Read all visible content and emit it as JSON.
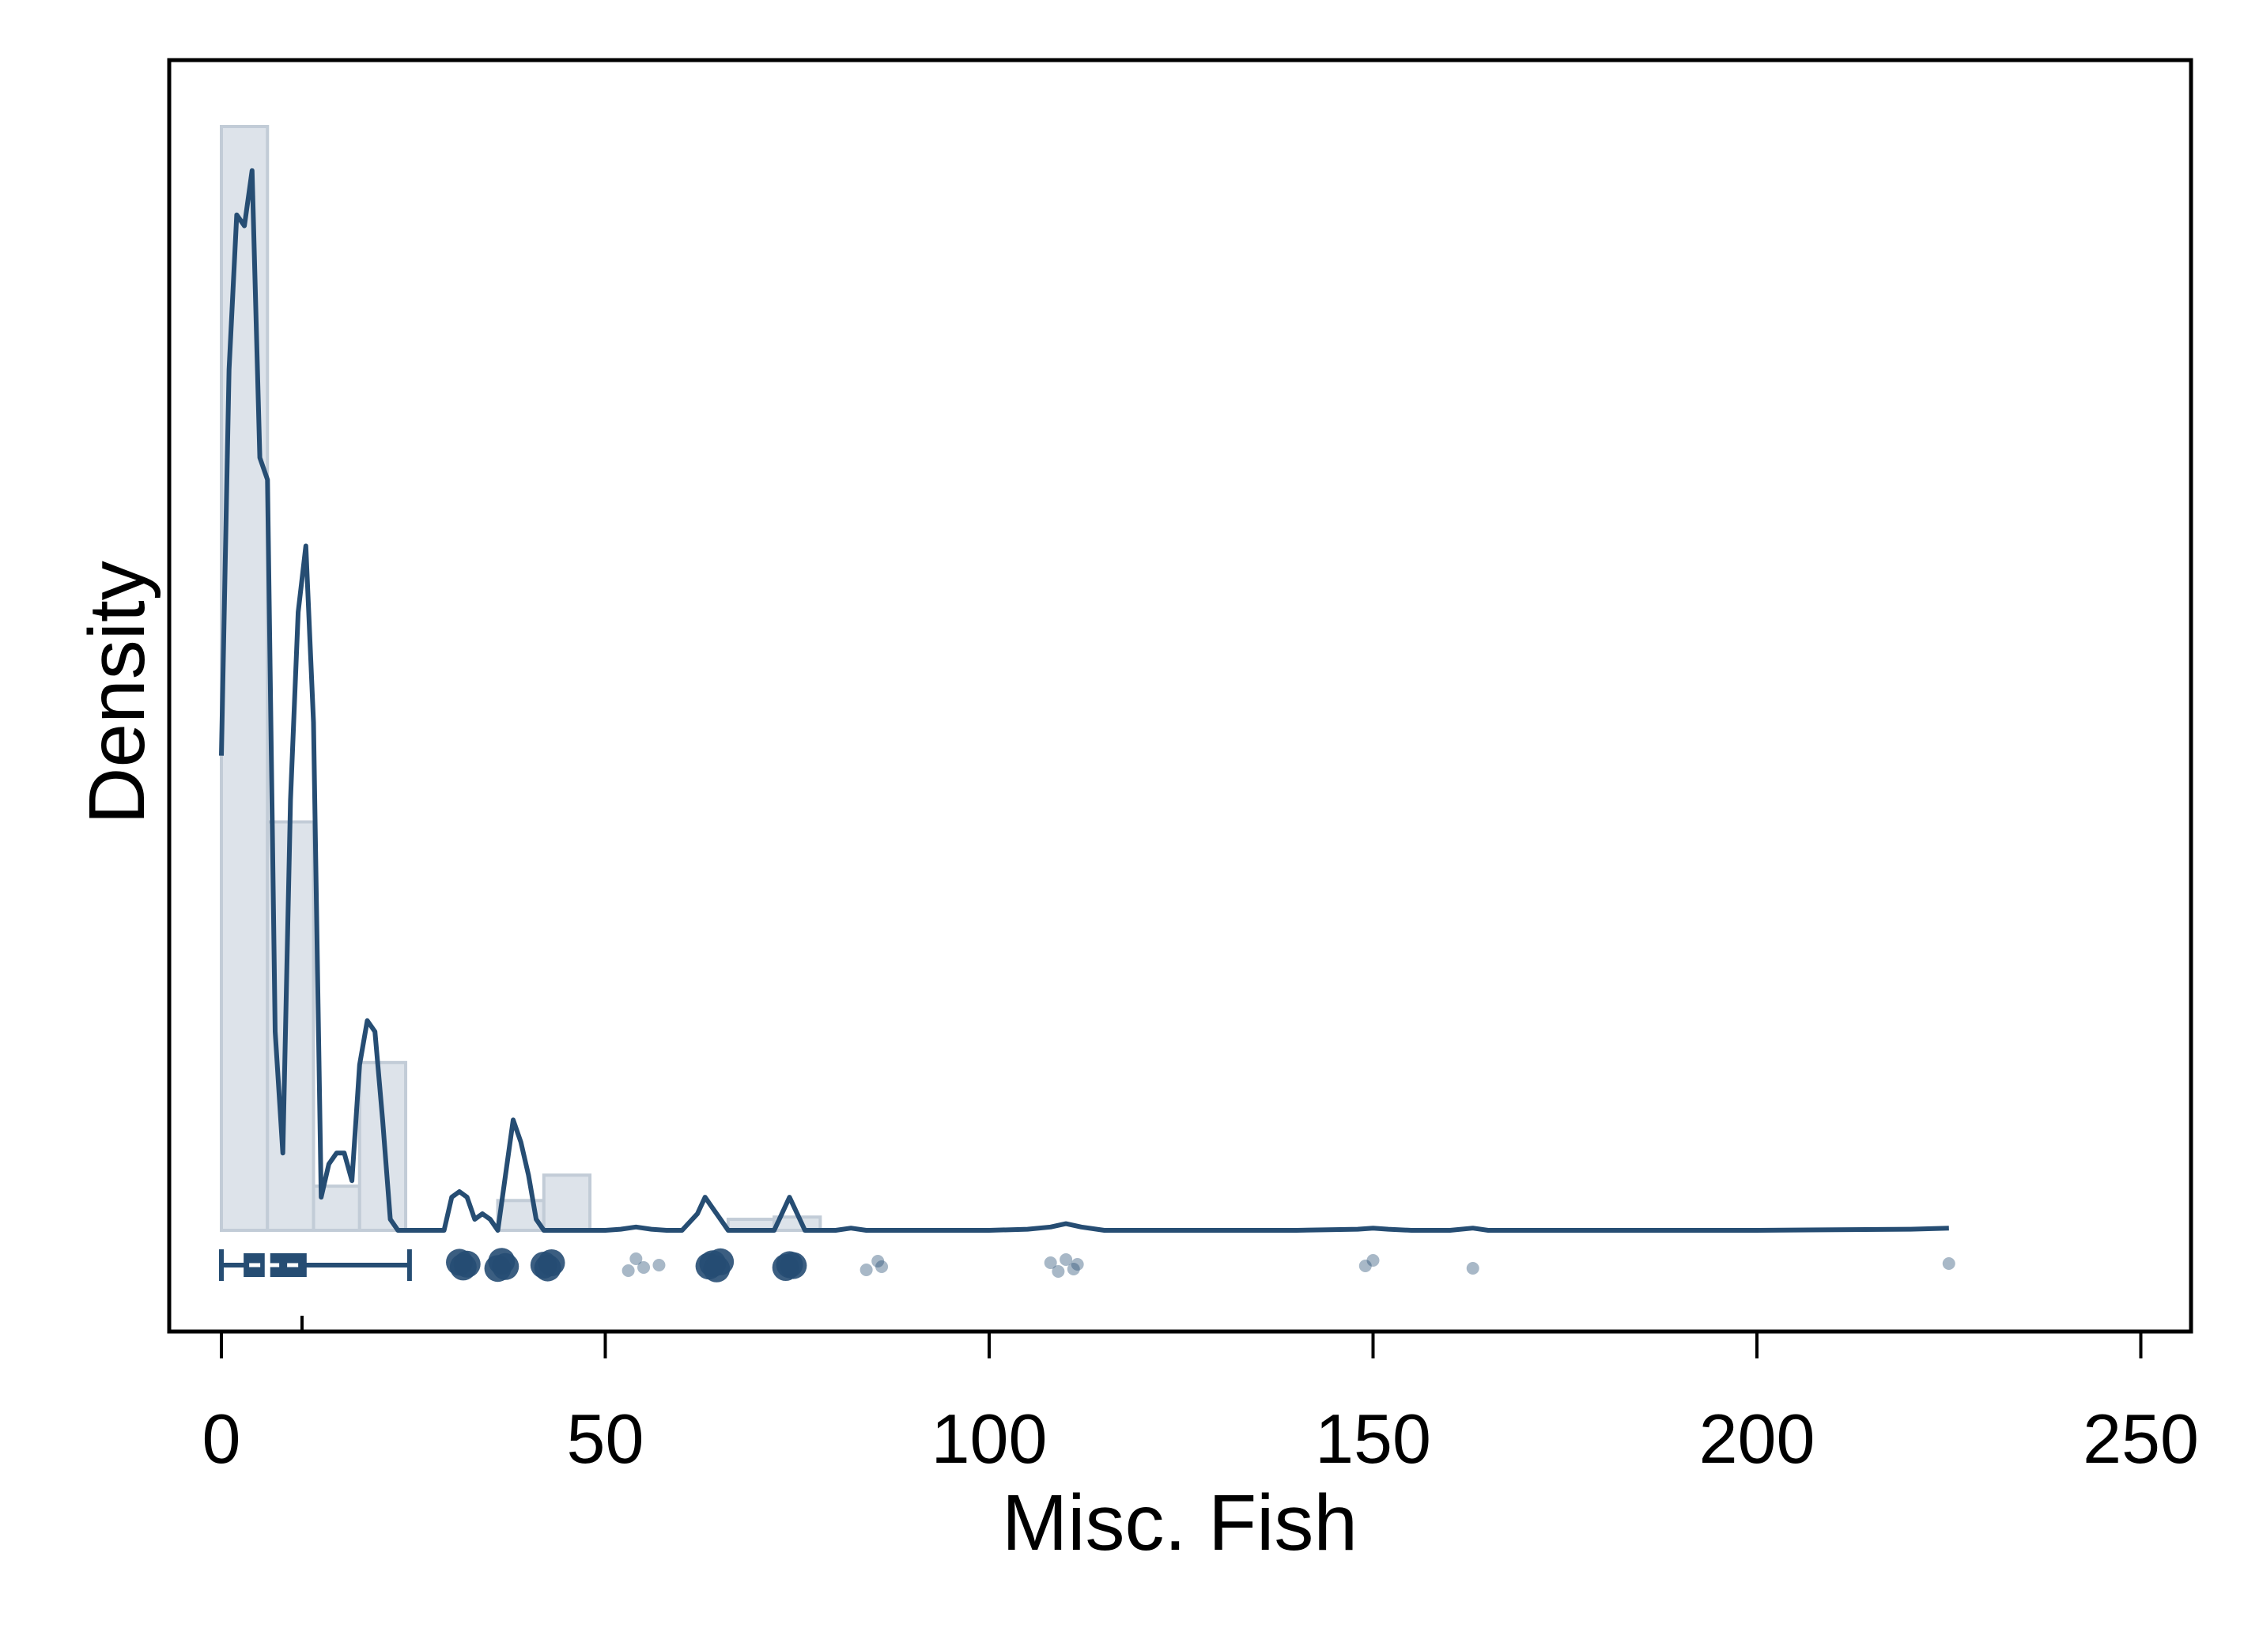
{
  "chart_data": {
    "type": "histogram",
    "title": "",
    "xlabel": "Misc. Fish",
    "ylabel": "Density",
    "xlim": [
      -7,
      257
    ],
    "xticks": [
      0,
      50,
      100,
      150,
      200,
      250
    ],
    "xtick_labels": [
      "0",
      "50",
      "100",
      "150",
      "200",
      "250"
    ],
    "yticks_shown": false,
    "grid": false,
    "legend": "none",
    "colors": {
      "line": "#264d73",
      "bar_fill": "#dde3ea",
      "bar_stroke": "#c2ccd7",
      "axis": "#000000"
    },
    "histogram": {
      "bin_edges": [
        0,
        6,
        12,
        18,
        24,
        30,
        36,
        42,
        48,
        54,
        60,
        66,
        72,
        78
      ],
      "heights": [
        1.0,
        0.37,
        0.04,
        0.152,
        0.0,
        0.0,
        0.027,
        0.05,
        0.0,
        0.0,
        0.0,
        0.01,
        0.012,
        0.0
      ]
    },
    "density_curve": {
      "x": [
        0,
        1,
        2,
        3,
        4,
        5,
        6,
        7,
        8,
        9,
        10,
        11,
        12,
        13,
        14,
        15,
        16,
        17,
        18,
        19,
        20,
        21,
        22,
        23,
        24,
        25,
        26,
        27,
        28,
        29,
        30,
        31,
        32,
        33,
        34,
        35,
        36,
        37,
        38,
        39,
        40,
        41,
        42,
        43,
        44,
        45,
        46,
        47,
        48,
        50,
        52,
        54,
        56,
        58,
        60,
        62,
        63,
        64,
        65,
        66,
        67,
        68,
        70,
        72,
        73,
        74,
        75,
        76,
        77,
        78,
        80,
        82,
        84,
        86,
        88,
        100,
        105,
        108,
        110,
        112,
        115,
        120,
        140,
        148,
        150,
        152,
        155,
        160,
        163,
        165,
        170,
        200,
        220,
        225
      ],
      "y": [
        0.43,
        0.78,
        0.92,
        0.91,
        0.96,
        0.7,
        0.68,
        0.18,
        0.07,
        0.39,
        0.56,
        0.62,
        0.46,
        0.03,
        0.06,
        0.07,
        0.07,
        0.045,
        0.15,
        0.19,
        0.18,
        0.1,
        0.01,
        0.0,
        0.0,
        0.0,
        0.0,
        0.0,
        0.0,
        0.0,
        0.03,
        0.035,
        0.03,
        0.01,
        0.015,
        0.01,
        0.0,
        0.05,
        0.1,
        0.08,
        0.05,
        0.01,
        0.0,
        0.0,
        0.0,
        0.0,
        0.0,
        0.0,
        0.0,
        0.0,
        0.001,
        0.003,
        0.001,
        0.0,
        0.0,
        0.015,
        0.03,
        0.02,
        0.01,
        0.0,
        0.0,
        0.0,
        0.0,
        0.0,
        0.015,
        0.03,
        0.015,
        0.0,
        0.0,
        0.0,
        0.0,
        0.002,
        0.0,
        0.0,
        0.0,
        0.0,
        0.001,
        0.003,
        0.006,
        0.003,
        0.0,
        0.0,
        0.0,
        0.001,
        0.002,
        0.001,
        0.0,
        0.0,
        0.002,
        0.0,
        0.0,
        0.0,
        0.001,
        0.002
      ]
    },
    "boxplot": {
      "whisker_low": 0,
      "q1": 3,
      "median": 6,
      "q3": 11,
      "whisker_high": 24.5
    },
    "mean_marker": 10.5,
    "points": {
      "large": [
        31,
        31.5,
        32,
        36,
        36.5,
        37,
        42,
        42.5,
        43,
        63.5,
        64,
        64.5,
        65,
        73.5,
        74,
        74.5
      ],
      "small": [
        53,
        54,
        55,
        57,
        84,
        85.5,
        86,
        108,
        109,
        110,
        111,
        111.5,
        149,
        150,
        163,
        225
      ]
    }
  }
}
